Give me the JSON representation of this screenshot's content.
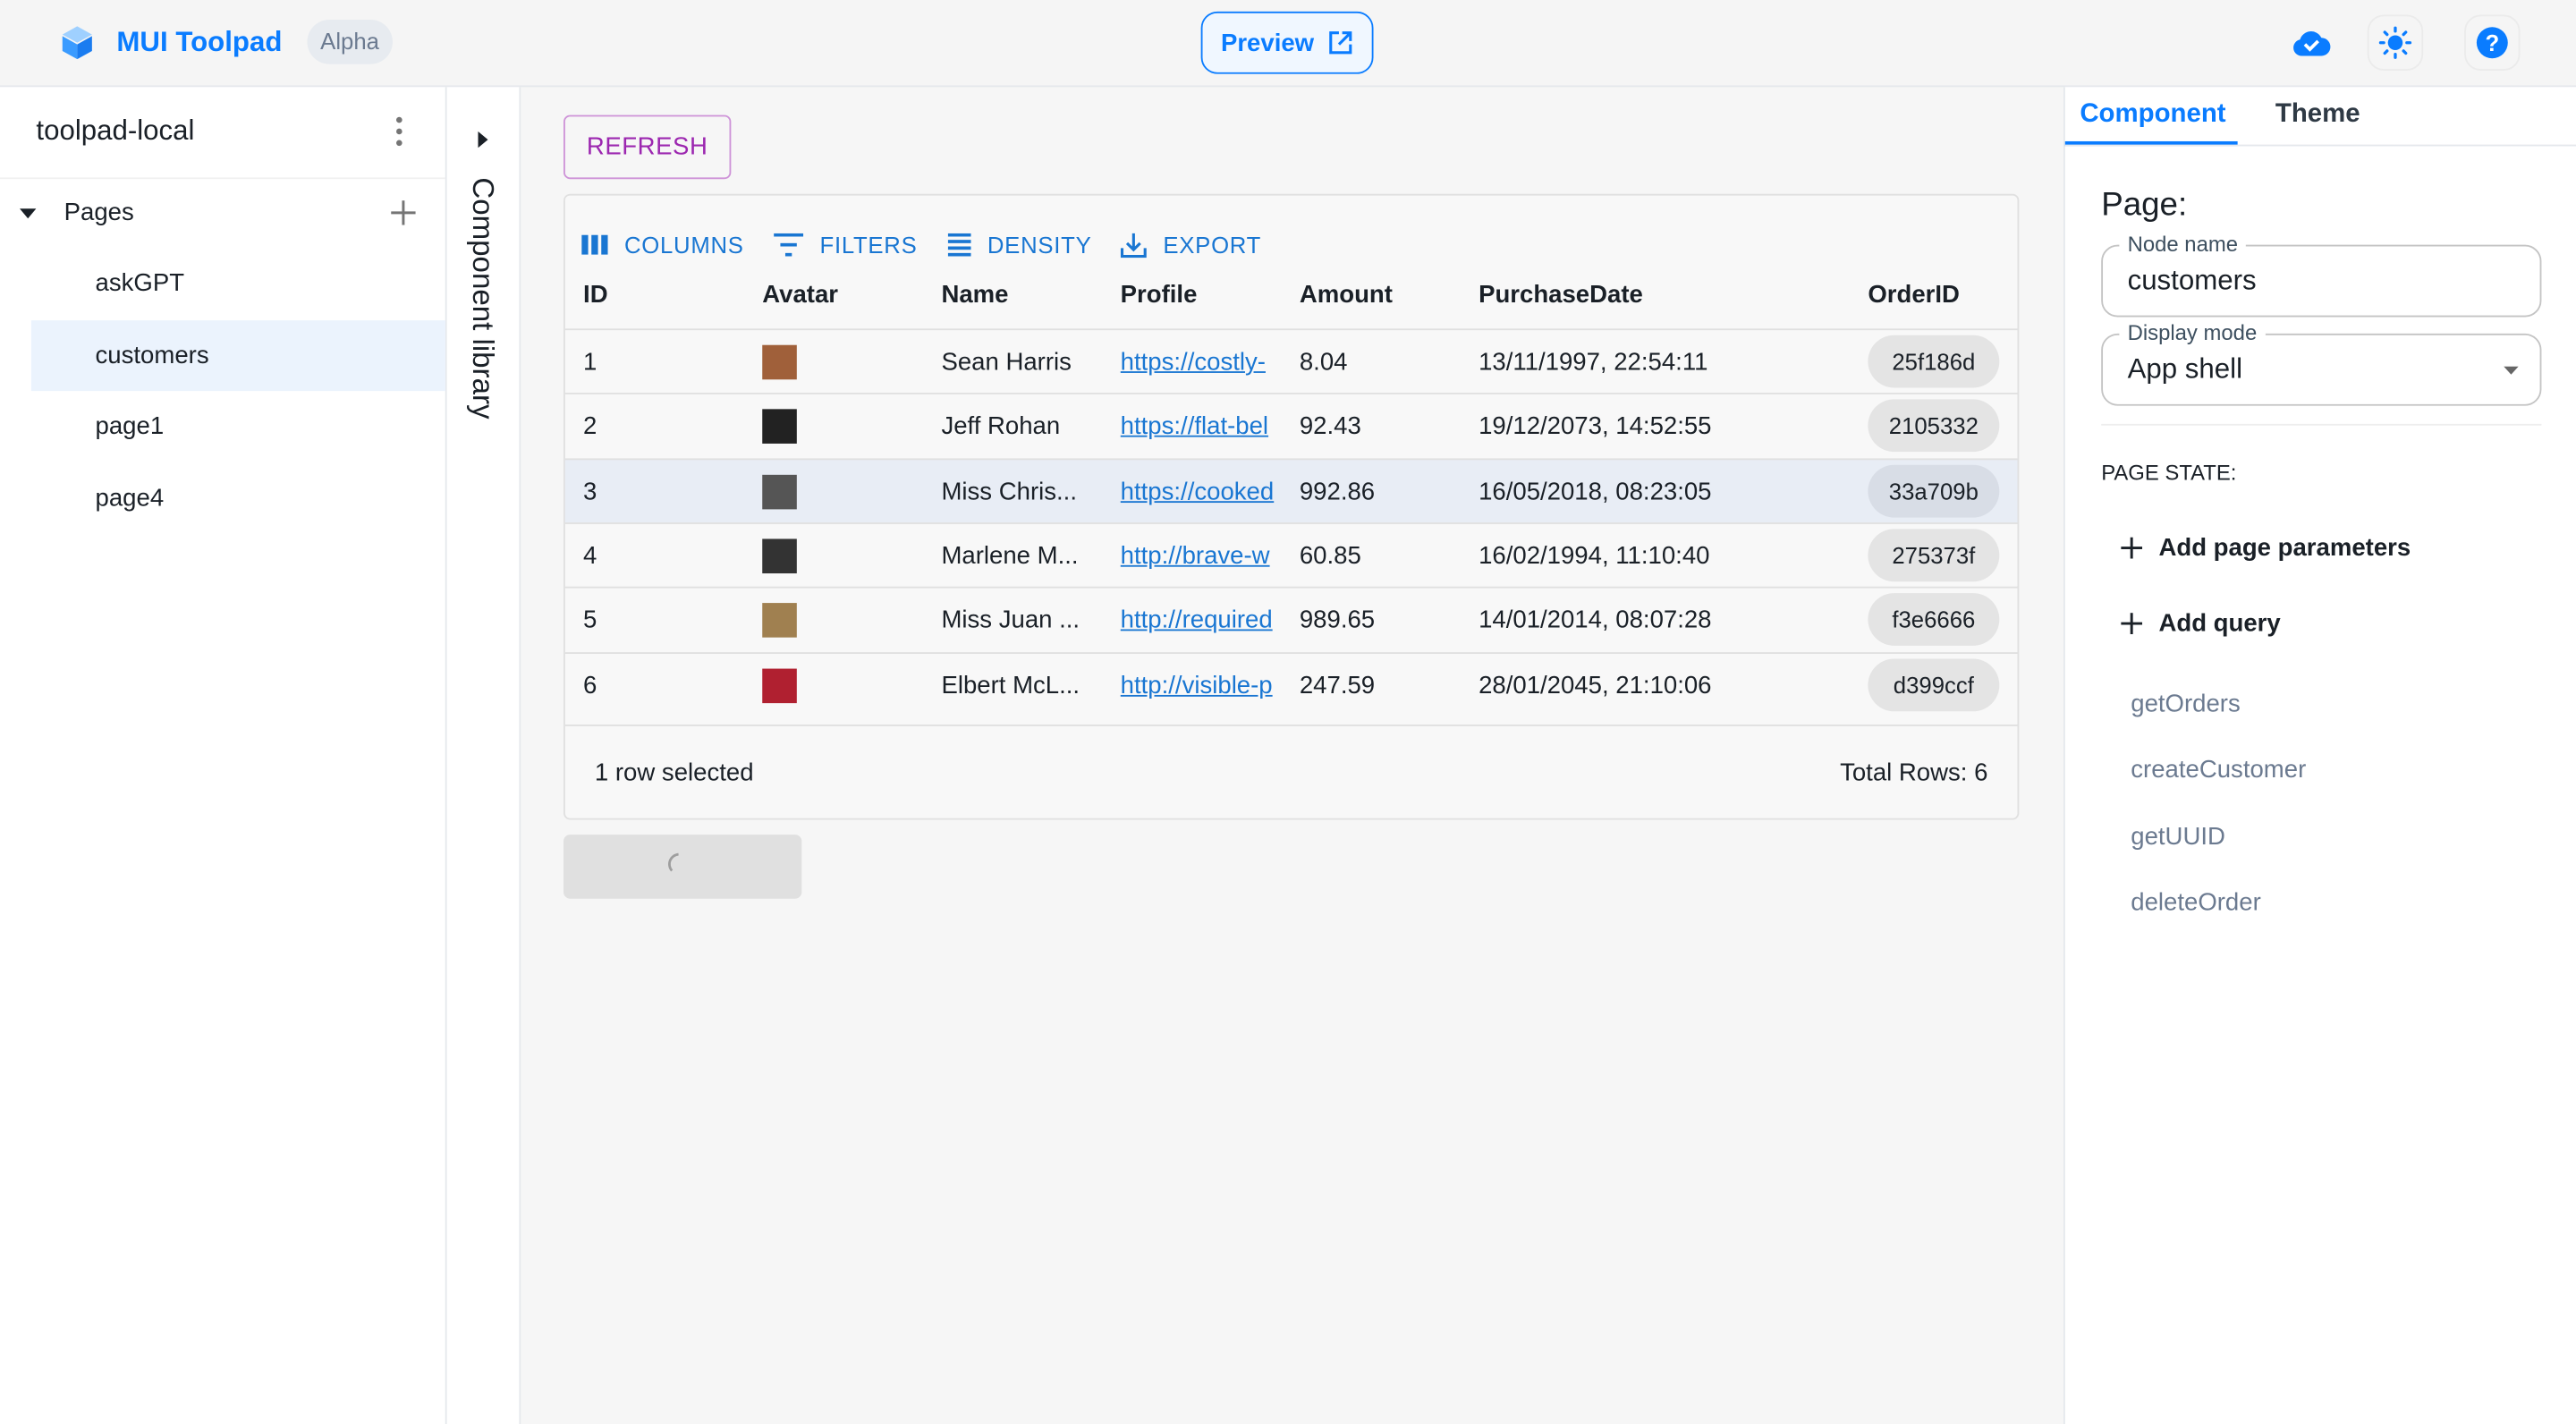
{
  "header": {
    "brand": "MUI Toolpad",
    "badge": "Alpha",
    "preview_label": "Preview",
    "icons": [
      "cloud-check-icon",
      "sun-icon",
      "help-icon"
    ],
    "accent": "#0a7cff"
  },
  "sidebar": {
    "project": "toolpad-local",
    "section": "Pages",
    "pages": [
      "askGPT",
      "customers",
      "page1",
      "page4"
    ],
    "selected": "customers"
  },
  "component_library": {
    "label": "Component library"
  },
  "canvas": {
    "refresh_label": "REFRESH",
    "toolbar": [
      "COLUMNS",
      "FILTERS",
      "DENSITY",
      "EXPORT"
    ],
    "columns": [
      "ID",
      "Avatar",
      "Name",
      "Profile",
      "Amount",
      "PurchaseDate",
      "OrderID"
    ],
    "rows": [
      {
        "id": "1",
        "name": "Sean Harris",
        "profile": "https://costly-",
        "amount": "8.04",
        "date": "13/11/1997, 22:54:11",
        "order": "25f186d",
        "avatar_color": "#a0603a"
      },
      {
        "id": "2",
        "name": "Jeff Rohan",
        "profile": "https://flat-bel",
        "amount": "92.43",
        "date": "19/12/2073, 14:52:55",
        "order": "2105332",
        "avatar_color": "#222222"
      },
      {
        "id": "3",
        "name": "Miss Chris...",
        "profile": "https://cooked",
        "amount": "992.86",
        "date": "16/05/2018, 08:23:05",
        "order": "33a709b",
        "avatar_color": "#555555"
      },
      {
        "id": "4",
        "name": "Marlene M...",
        "profile": "http://brave-w",
        "amount": "60.85",
        "date": "16/02/1994, 11:10:40",
        "order": "275373f",
        "avatar_color": "#333333"
      },
      {
        "id": "5",
        "name": "Miss Juan ...",
        "profile": "http://required",
        "amount": "989.65",
        "date": "14/01/2014, 08:07:28",
        "order": "f3e6666",
        "avatar_color": "#a08050"
      },
      {
        "id": "6",
        "name": "Elbert McL...",
        "profile": "http://visible-p",
        "amount": "247.59",
        "date": "28/01/2045, 21:10:06",
        "order": "d399ccf",
        "avatar_color": "#b02030"
      }
    ],
    "selected_row": "3",
    "footer_selected": "1 row selected",
    "footer_total": "Total Rows: 6"
  },
  "inspector": {
    "tabs": [
      "Component",
      "Theme"
    ],
    "active_tab": "Component",
    "title": "Page:",
    "node_name_label": "Node name",
    "node_name": "customers",
    "display_mode_label": "Display mode",
    "display_mode": "App shell",
    "page_state": "PAGE STATE:",
    "add_params": "Add page parameters",
    "add_query": "Add query",
    "queries": [
      "getOrders",
      "createCustomer",
      "getUUID",
      "deleteOrder"
    ]
  }
}
